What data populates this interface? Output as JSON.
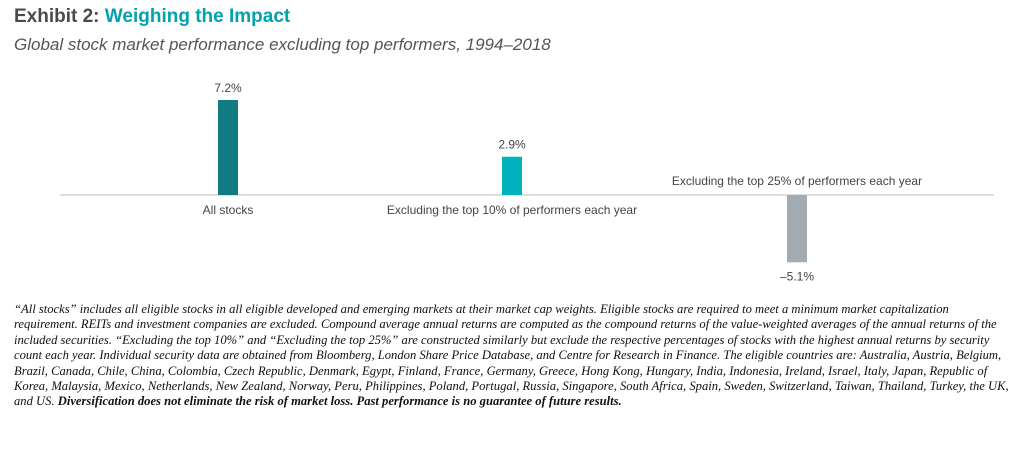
{
  "header": {
    "title_prefix": "Exhibit 2:",
    "title_main": "Weighing the Impact",
    "subtitle": "Global stock market performance excluding top performers, 1994–2018"
  },
  "chart_data": {
    "type": "bar",
    "categories": [
      "All stocks",
      "Excluding the top 10% of performers each year",
      "Excluding the top 25% of performers each year"
    ],
    "values": [
      7.2,
      2.9,
      -5.1
    ],
    "value_labels": [
      "7.2%",
      "2.9%",
      "–5.1%"
    ],
    "colors": [
      "#127b82",
      "#00b3bc",
      "#a3acb3"
    ],
    "ylim": [
      -5.1,
      7.2
    ],
    "grid": false,
    "legend": "none"
  },
  "footnote": {
    "text": "“All stocks” includes all eligible stocks in all eligible developed and emerging markets at their market cap weights. Eligible stocks are required to meet a minimum market capitalization requirement. REITs and investment companies are excluded. Compound average annual returns are computed as the compound returns of the value-weighted averages of the annual returns of the included securities. “Excluding the top 10%” and “Excluding the top 25%” are constructed similarly but exclude the respective percentages of stocks with the highest annual returns by security count each year. Individual security data are obtained from Bloomberg, London Share Price Database, and Centre for Research in Finance. The eligible countries are: Australia, Austria, Belgium, Brazil, Canada, Chile, China, Colombia, Czech Republic, Denmark, Egypt, Finland, France, Germany, Greece, Hong Kong, Hungary, India, Indonesia, Ireland, Israel, Italy, Japan, Republic of Korea, Malaysia, Mexico, Netherlands, New Zealand, Norway, Peru, Philippines, Poland, Portugal, Russia, Singapore, South Africa, Spain, Sweden, Switzerland, Taiwan, Thailand, Turkey, the UK, and US.",
    "disclaimer": "Diversification does not eliminate the risk of market loss. Past performance is no guarantee of future results."
  }
}
